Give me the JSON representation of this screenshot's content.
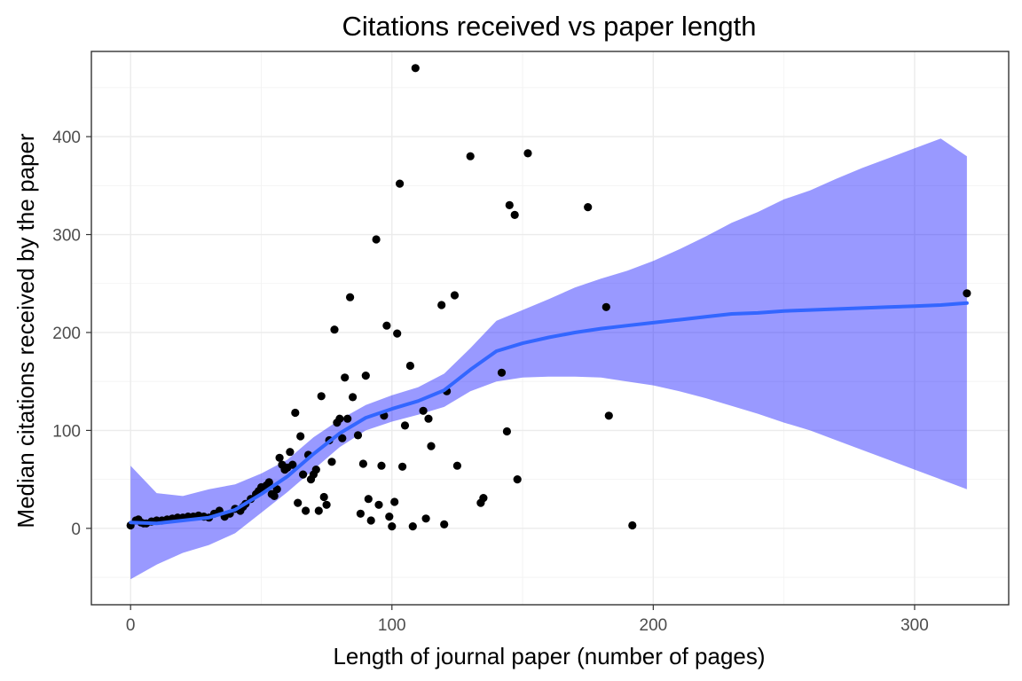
{
  "chart_data": {
    "type": "scatter",
    "title": "Citations received vs paper length",
    "xlabel": "Length of journal paper (number of pages)",
    "ylabel": "Median citations received by the paper",
    "xlim": [
      -15,
      336
    ],
    "ylim": [
      -78,
      487
    ],
    "xticks": [
      0,
      100,
      200,
      300
    ],
    "yticks": [
      0,
      100,
      200,
      300,
      400
    ],
    "xtick_labels": [
      "0",
      "100",
      "200",
      "300"
    ],
    "ytick_labels": [
      "0",
      "100",
      "200",
      "300",
      "400"
    ],
    "grid": true,
    "point_color": "#000000",
    "smooth_color": "#3366ff",
    "ribbon_color": "#0000ff",
    "points": [
      [
        0,
        3
      ],
      [
        2,
        8
      ],
      [
        3,
        9
      ],
      [
        4,
        6
      ],
      [
        5,
        5
      ],
      [
        6,
        5
      ],
      [
        8,
        7
      ],
      [
        10,
        8
      ],
      [
        12,
        8
      ],
      [
        14,
        9
      ],
      [
        16,
        10
      ],
      [
        18,
        11
      ],
      [
        20,
        11
      ],
      [
        22,
        12
      ],
      [
        24,
        12
      ],
      [
        26,
        13
      ],
      [
        28,
        12
      ],
      [
        30,
        11
      ],
      [
        32,
        15
      ],
      [
        34,
        18
      ],
      [
        36,
        12
      ],
      [
        38,
        15
      ],
      [
        40,
        20
      ],
      [
        42,
        18
      ],
      [
        43,
        22
      ],
      [
        44,
        25
      ],
      [
        46,
        30
      ],
      [
        48,
        35
      ],
      [
        49,
        38
      ],
      [
        50,
        42
      ],
      [
        51,
        40
      ],
      [
        52,
        44
      ],
      [
        53,
        47
      ],
      [
        54,
        35
      ],
      [
        55,
        33
      ],
      [
        56,
        40
      ],
      [
        57,
        72
      ],
      [
        58,
        65
      ],
      [
        59,
        60
      ],
      [
        60,
        62
      ],
      [
        61,
        78
      ],
      [
        62,
        65
      ],
      [
        63,
        118
      ],
      [
        64,
        26
      ],
      [
        65,
        94
      ],
      [
        66,
        55
      ],
      [
        67,
        18
      ],
      [
        68,
        75
      ],
      [
        69,
        50
      ],
      [
        70,
        55
      ],
      [
        71,
        60
      ],
      [
        72,
        18
      ],
      [
        73,
        135
      ],
      [
        74,
        32
      ],
      [
        75,
        24
      ],
      [
        76,
        90
      ],
      [
        77,
        68
      ],
      [
        78,
        203
      ],
      [
        79,
        108
      ],
      [
        80,
        112
      ],
      [
        81,
        92
      ],
      [
        82,
        154
      ],
      [
        83,
        112
      ],
      [
        84,
        236
      ],
      [
        85,
        134
      ],
      [
        87,
        95
      ],
      [
        88,
        15
      ],
      [
        89,
        66
      ],
      [
        90,
        156
      ],
      [
        91,
        30
      ],
      [
        92,
        8
      ],
      [
        94,
        295
      ],
      [
        95,
        24
      ],
      [
        96,
        64
      ],
      [
        97,
        115
      ],
      [
        98,
        207
      ],
      [
        99,
        12
      ],
      [
        100,
        2
      ],
      [
        101,
        27
      ],
      [
        102,
        199
      ],
      [
        103,
        352
      ],
      [
        104,
        63
      ],
      [
        105,
        105
      ],
      [
        107,
        166
      ],
      [
        108,
        2
      ],
      [
        109,
        470
      ],
      [
        112,
        120
      ],
      [
        113,
        10
      ],
      [
        114,
        112
      ],
      [
        115,
        84
      ],
      [
        119,
        228
      ],
      [
        120,
        4
      ],
      [
        121,
        140
      ],
      [
        124,
        238
      ],
      [
        125,
        64
      ],
      [
        130,
        380
      ],
      [
        134,
        26
      ],
      [
        135,
        31
      ],
      [
        142,
        159
      ],
      [
        144,
        99
      ],
      [
        145,
        330
      ],
      [
        147,
        320
      ],
      [
        148,
        50
      ],
      [
        152,
        383
      ],
      [
        175,
        328
      ],
      [
        182,
        226
      ],
      [
        183,
        115
      ],
      [
        192,
        3
      ],
      [
        320,
        240
      ]
    ],
    "smooth": {
      "x": [
        0,
        10,
        20,
        30,
        40,
        50,
        60,
        70,
        80,
        90,
        100,
        110,
        120,
        130,
        140,
        150,
        160,
        170,
        180,
        190,
        200,
        210,
        220,
        230,
        240,
        250,
        260,
        270,
        280,
        290,
        300,
        310,
        320
      ],
      "y": [
        6,
        5,
        8,
        11,
        19,
        35,
        53,
        76,
        97,
        113,
        122,
        130,
        141,
        162,
        181,
        189,
        195,
        200,
        204,
        207,
        210,
        213,
        216,
        219,
        220,
        222,
        223,
        224,
        225,
        226,
        227,
        228,
        230
      ],
      "lower": [
        -52,
        -37,
        -25,
        -17,
        -5,
        16,
        37,
        60,
        83,
        100,
        109,
        116,
        124,
        140,
        150,
        154,
        155,
        155,
        154,
        150,
        146,
        140,
        133,
        125,
        117,
        108,
        100,
        90,
        80,
        70,
        60,
        50,
        40
      ],
      "upper": [
        64,
        36,
        33,
        40,
        45,
        56,
        70,
        93,
        111,
        126,
        136,
        144,
        158,
        184,
        212,
        223,
        234,
        246,
        255,
        263,
        273,
        285,
        298,
        312,
        323,
        336,
        345,
        357,
        368,
        378,
        388,
        398,
        380
      ]
    }
  }
}
